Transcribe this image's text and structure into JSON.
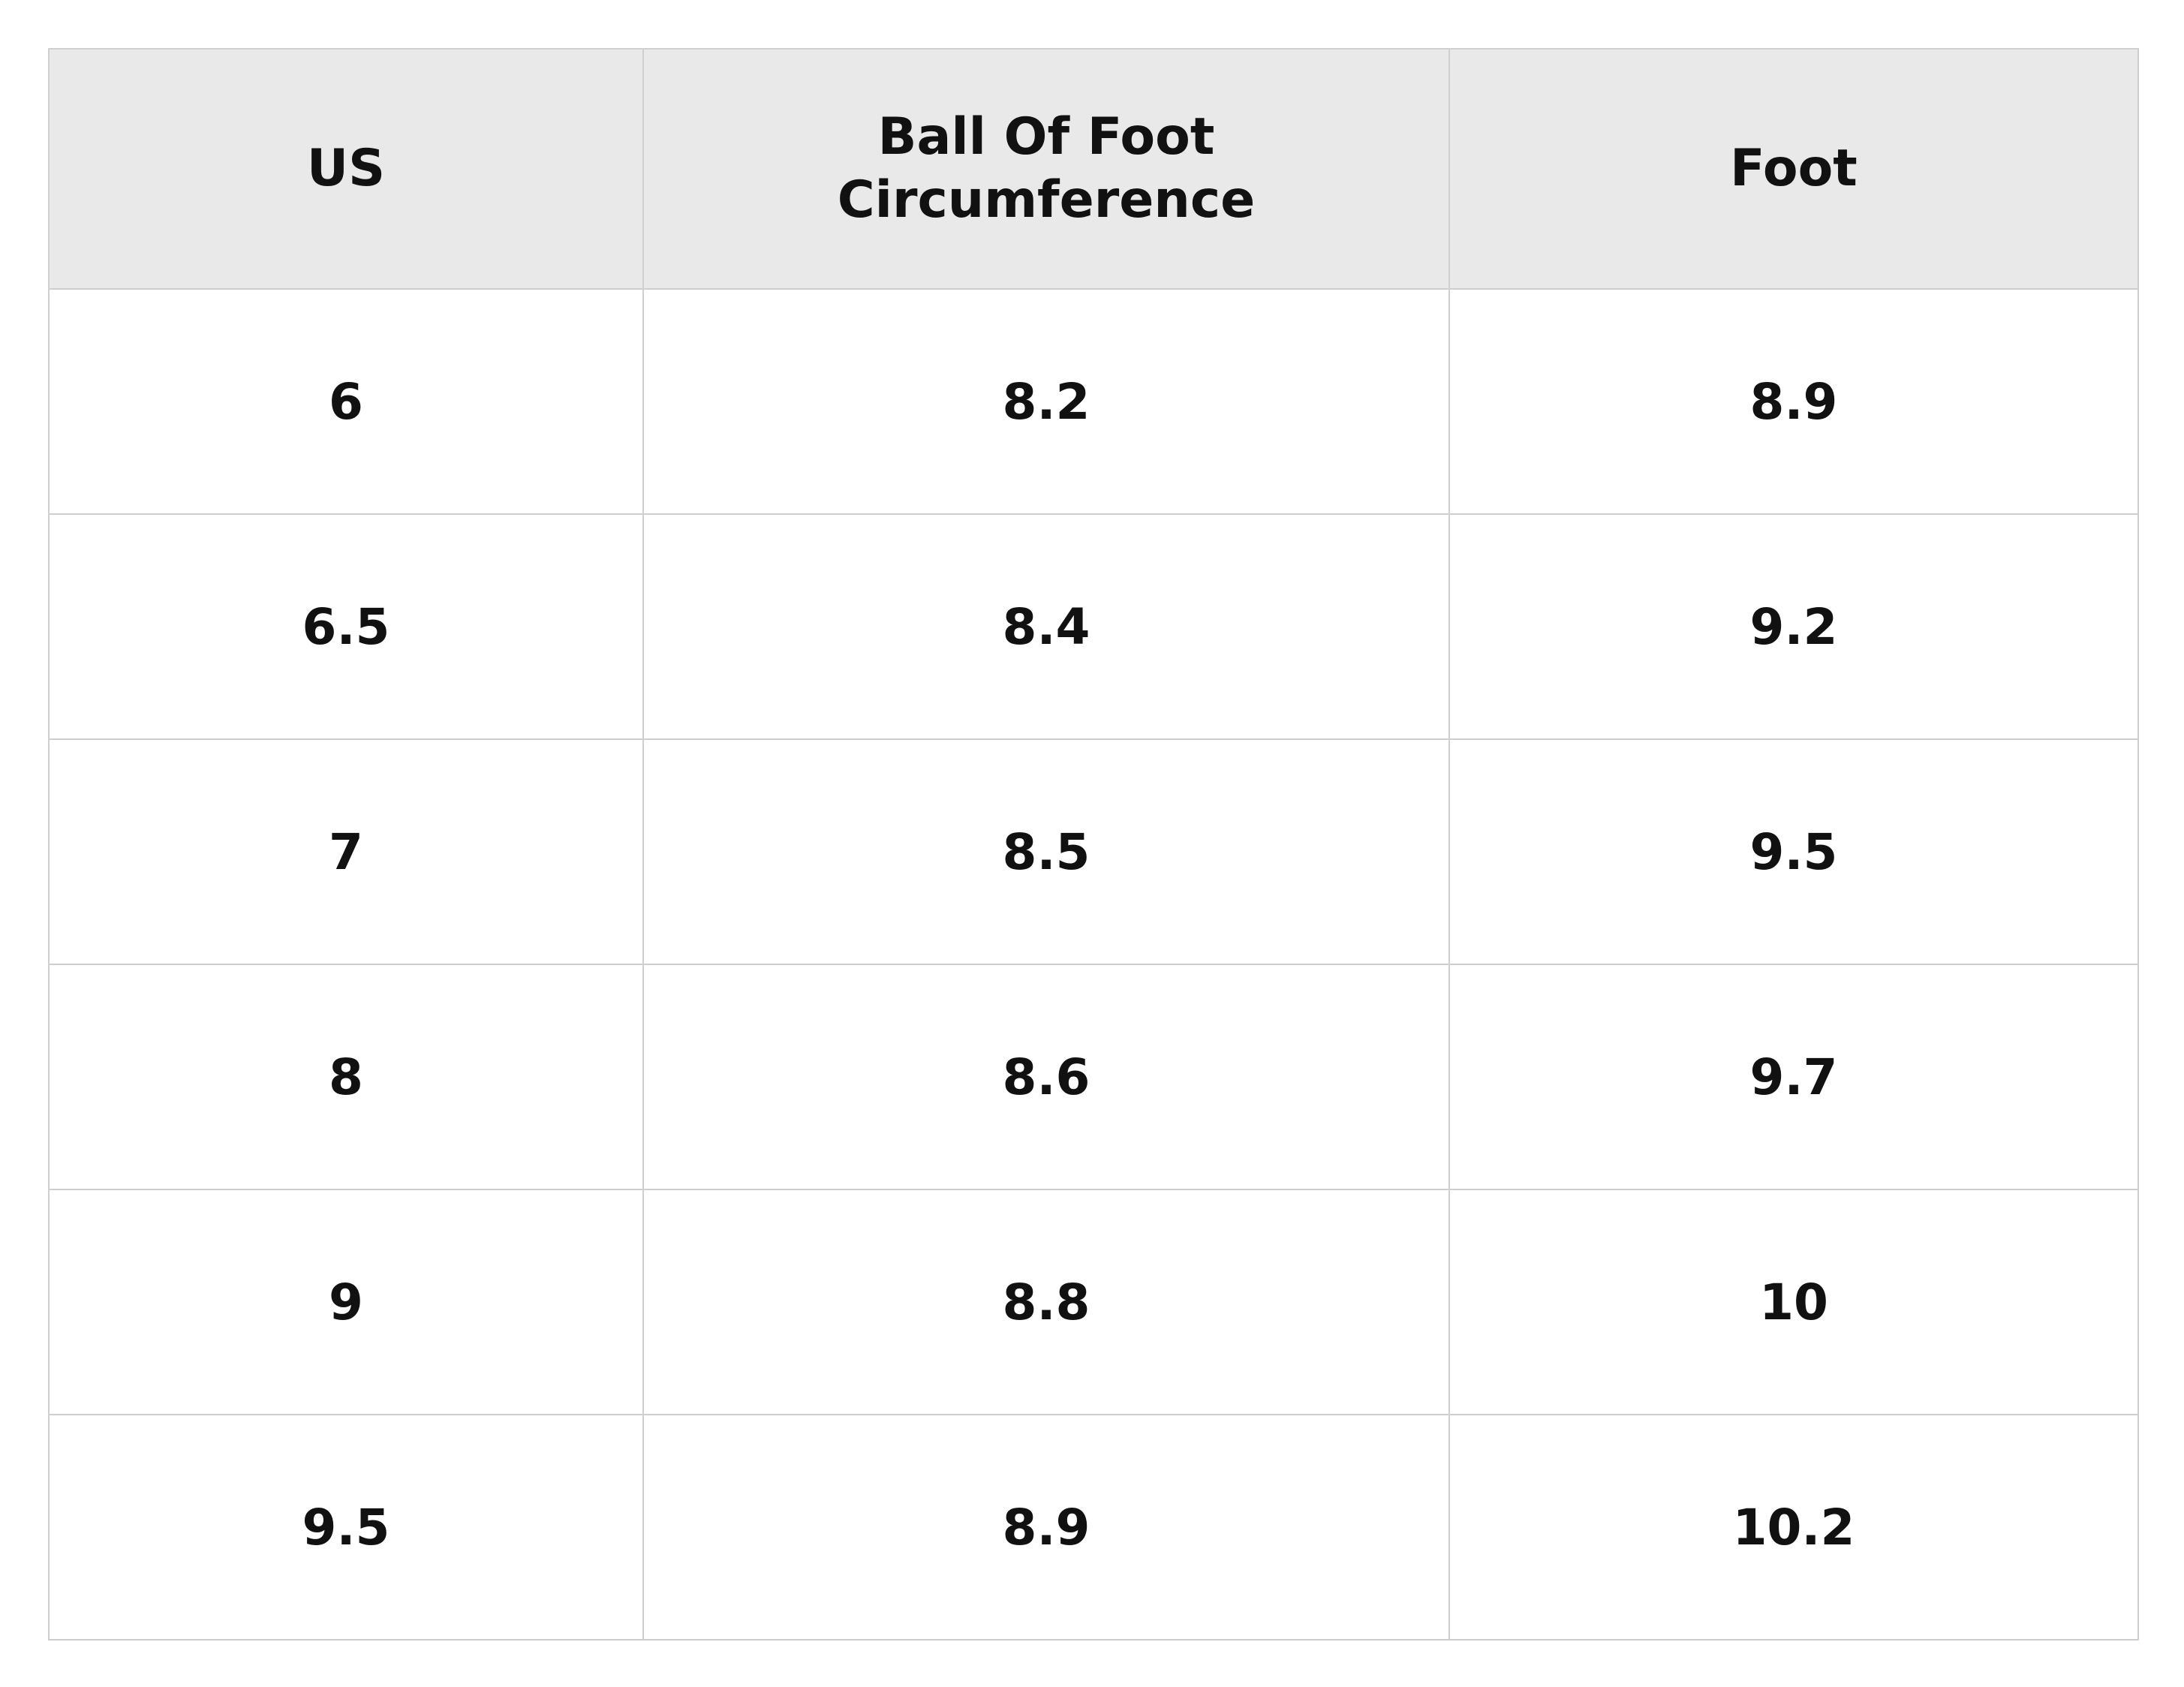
{
  "table": {
    "headers": [
      "US",
      "Ball Of Foot Circumference",
      "Foot"
    ],
    "rows": [
      [
        "6",
        "8.2",
        "8.9"
      ],
      [
        "6.5",
        "8.4",
        "9.2"
      ],
      [
        "7",
        "8.5",
        "9.5"
      ],
      [
        "8",
        "8.6",
        "9.7"
      ],
      [
        "9",
        "8.8",
        "10"
      ],
      [
        "9.5",
        "8.9",
        "10.2"
      ]
    ]
  },
  "colors": {
    "header_background": "#e9e9e9",
    "border": "#cfcfcf",
    "text": "#111111",
    "background": "#ffffff"
  }
}
